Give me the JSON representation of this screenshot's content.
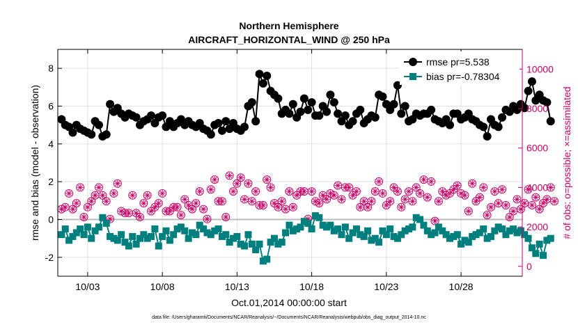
{
  "chart_data": {
    "type": "line",
    "title_line1": "Northern Hemisphere",
    "title_line2": "AIRCRAFT_HORIZONTAL_WIND @ 250 hPa",
    "xlabel": "Oct.01,2014 00:00:00 start",
    "ylabel_left": "rmse and bias (model - observation)",
    "ylabel_right": "# of obs: o=possible; ×=assimilated",
    "footnote": "data file: /Users/gharamti/Documents/NCAR/Reanalysis/~/Documents/NCAR/Reanalysis/webpub/obs_diag_output_2014-10.nc",
    "x_tick_labels": [
      "10/03",
      "10/08",
      "10/13",
      "10/18",
      "10/23",
      "10/28"
    ],
    "x_tick_days": [
      3,
      8,
      13,
      18,
      23,
      28
    ],
    "xlim_days": [
      1.0,
      32.1
    ],
    "y_left_ticks": [
      -2,
      0,
      2,
      4,
      6,
      8
    ],
    "y_left_lim": [
      -3,
      9
    ],
    "y_right_ticks": [
      0,
      2000,
      4000,
      6000,
      8000,
      10000
    ],
    "y_right_lim": [
      -500,
      11000
    ],
    "grid": true,
    "legend_position": "top-right",
    "colors": {
      "rmse": "#000000",
      "bias": "#007f7f",
      "obs": "#cc0066",
      "zero_line": "#bbbbbb"
    },
    "series": [
      {
        "name": "rmse pr=5.538",
        "axis": "left",
        "x_start_day": 1.25,
        "x_step_day": 0.25,
        "values": [
          5.3,
          5.0,
          4.9,
          4.6,
          5.0,
          4.8,
          4.7,
          4.6,
          4.5,
          5.2,
          5.0,
          4.4,
          4.5,
          6.1,
          5.7,
          5.9,
          5.6,
          5.4,
          5.6,
          5.5,
          5.4,
          5.0,
          5.2,
          5.3,
          5.5,
          5.1,
          5.4,
          5.5,
          4.9,
          5.2,
          4.9,
          5.1,
          5.3,
          5.0,
          5.2,
          5.0,
          4.9,
          5.1,
          4.8,
          4.7,
          4.5,
          5.0,
          5.1,
          4.7,
          5.2,
          4.8,
          5.1,
          4.8,
          4.7,
          4.9,
          6.0,
          6.2,
          5.2,
          7.7,
          7.2,
          7.6,
          6.8,
          6.6,
          6.4,
          5.6,
          5.8,
          5.6,
          6.1,
          5.4,
          5.7,
          6.4,
          5.8,
          6.2,
          5.5,
          5.5,
          6.0,
          5.7,
          6.6,
          6.2,
          5.6,
          5.2,
          5.5,
          5.0,
          5.2,
          5.6,
          5.8,
          5.1,
          5.3,
          5.5,
          5.4,
          6.6,
          6.5,
          6.1,
          5.8,
          6.1,
          7.1,
          5.6,
          6.0,
          5.2,
          5.3,
          5.6,
          5.5,
          5.6,
          5.6,
          5.8,
          5.3,
          5.2,
          5.1,
          5.3,
          5.0,
          5.6,
          5.6,
          5.3,
          5.4,
          5.6,
          5.3,
          5.2,
          5.0,
          4.9,
          4.4,
          5.3,
          5.0,
          4.9,
          5.4,
          5.8,
          5.7,
          6.0,
          5.8,
          6.1,
          5.9,
          6.8,
          7.3,
          6.3,
          6.6,
          6.3,
          6.2,
          5.2
        ]
      },
      {
        "name": "bias pr=-0.78304",
        "axis": "left",
        "x_start_day": 1.25,
        "x_step_day": 0.25,
        "values": [
          -0.8,
          -0.5,
          -1.1,
          -0.9,
          -0.7,
          -0.5,
          -0.8,
          -0.4,
          -1.0,
          -0.6,
          -0.4,
          0.1,
          -0.2,
          -0.9,
          -1.0,
          -1.1,
          -0.8,
          -1.2,
          -1.4,
          -0.9,
          -1.3,
          -1.0,
          -0.8,
          -1.0,
          -0.9,
          -0.5,
          -1.4,
          -0.9,
          -0.6,
          -1.1,
          -0.8,
          -0.5,
          -0.4,
          -0.6,
          -1.0,
          -0.7,
          -0.8,
          -0.3,
          -0.5,
          -0.7,
          -0.8,
          -0.6,
          -0.5,
          -0.9,
          -0.8,
          -1.2,
          -1.0,
          -0.9,
          -1.3,
          -1.4,
          -0.8,
          -1.3,
          -1.6,
          -1.3,
          -2.2,
          -2.1,
          -1.2,
          -1.0,
          -1.3,
          -1.2,
          -0.7,
          -0.3,
          -0.6,
          -0.5,
          -0.4,
          -0.1,
          -0.2,
          -0.5,
          0.2,
          0.1,
          -0.3,
          -0.4,
          -0.3,
          -0.6,
          -0.5,
          -0.8,
          -0.4,
          -1.0,
          -0.7,
          -0.5,
          -0.8,
          -0.9,
          -0.6,
          -1.1,
          -1.0,
          -1.2,
          -0.6,
          -0.8,
          -0.5,
          -0.9,
          -1.0,
          -0.8,
          -0.6,
          -0.5,
          -0.4,
          0.1,
          0.0,
          -0.3,
          -0.6,
          -0.8,
          -0.7,
          -0.4,
          -0.6,
          -0.8,
          -1.0,
          -0.9,
          -0.8,
          -1.3,
          -1.1,
          -1.2,
          -0.9,
          -0.8,
          -0.7,
          -0.5,
          -1.0,
          -0.9,
          -0.6,
          -0.4,
          -0.5,
          -0.8,
          -0.6,
          -0.5,
          -0.7,
          -0.6,
          -0.8,
          -1.0,
          -1.5,
          -1.8,
          -1.3,
          -1.9,
          -1.1,
          -1.0
        ]
      },
      {
        "name": "possible",
        "axis": "right",
        "marker": "circle",
        "x_start_day": 1.25,
        "x_step_day": 0.25,
        "values": [
          2900,
          3000,
          3700,
          2900,
          3200,
          4000,
          2500,
          3000,
          3300,
          3600,
          4000,
          3600,
          3300,
          2400,
          3700,
          4200,
          2800,
          2700,
          2700,
          3600,
          2700,
          2500,
          3200,
          3600,
          2800,
          3000,
          3200,
          3700,
          2800,
          2800,
          3000,
          3000,
          2600,
          3400,
          3100,
          2900,
          3200,
          3800,
          2900,
          2400,
          3900,
          4400,
          3300,
          3300,
          2500,
          4600,
          3800,
          4200,
          4500,
          3400,
          4200,
          3300,
          3800,
          3100,
          3100,
          4400,
          4000,
          3200,
          3000,
          3300,
          2900,
          3800,
          3000,
          3600,
          3800,
          3800,
          2400,
          3800,
          3300,
          3200,
          3600,
          3400,
          3700,
          3600,
          4100,
          3400,
          4000,
          4000,
          3600,
          3800,
          3000,
          3300,
          3000,
          3300,
          3800,
          4300,
          3700,
          3100,
          3300,
          4000,
          3800,
          3000,
          3400,
          3800,
          3300,
          4000,
          3700,
          4400,
          3500,
          4300,
          2300,
          3300,
          3800,
          3600,
          3700,
          3900,
          4100,
          3700,
          3600,
          2800,
          4200,
          3300,
          3500,
          4000,
          2600,
          3000,
          3800,
          3200,
          3900,
          3100,
          2500,
          2800,
          3400,
          2900,
          3200,
          3900,
          3100,
          3500,
          2900,
          3200,
          3400,
          4000,
          3300
        ]
      },
      {
        "name": "assimilated",
        "axis": "right",
        "marker": "asterisk",
        "x_start_day": 1.25,
        "x_step_day": 0.25,
        "values": [
          2900,
          3000,
          3700,
          2900,
          3200,
          4000,
          2500,
          3000,
          3300,
          3600,
          4000,
          3600,
          3300,
          2400,
          3700,
          4200,
          2800,
          2700,
          2700,
          3600,
          2700,
          2500,
          3200,
          3600,
          2800,
          3000,
          3200,
          3700,
          2800,
          2800,
          3000,
          3000,
          2600,
          3400,
          3100,
          2900,
          3200,
          3800,
          2900,
          2400,
          3900,
          4400,
          3300,
          3300,
          2500,
          4600,
          3800,
          4200,
          4500,
          3400,
          4200,
          3300,
          3800,
          3100,
          3100,
          4400,
          4000,
          3200,
          3000,
          3300,
          2900,
          3800,
          3000,
          3600,
          3800,
          3800,
          2400,
          3800,
          3300,
          3200,
          3600,
          3400,
          3700,
          3600,
          4100,
          3400,
          4000,
          4000,
          3600,
          3800,
          3000,
          3300,
          3000,
          3300,
          3800,
          4300,
          3700,
          3100,
          3300,
          4000,
          3800,
          3000,
          3400,
          3800,
          3300,
          4000,
          3700,
          4400,
          3500,
          4300,
          2300,
          3300,
          3800,
          3600,
          3700,
          3900,
          4100,
          3700,
          3600,
          2800,
          4200,
          3300,
          3500,
          4000,
          2600,
          3000,
          3800,
          3200,
          3900,
          3100,
          2500,
          2800,
          3400,
          2900,
          3200,
          3900,
          3100,
          3500,
          2900,
          3200,
          3400,
          4000,
          3300
        ]
      }
    ]
  }
}
